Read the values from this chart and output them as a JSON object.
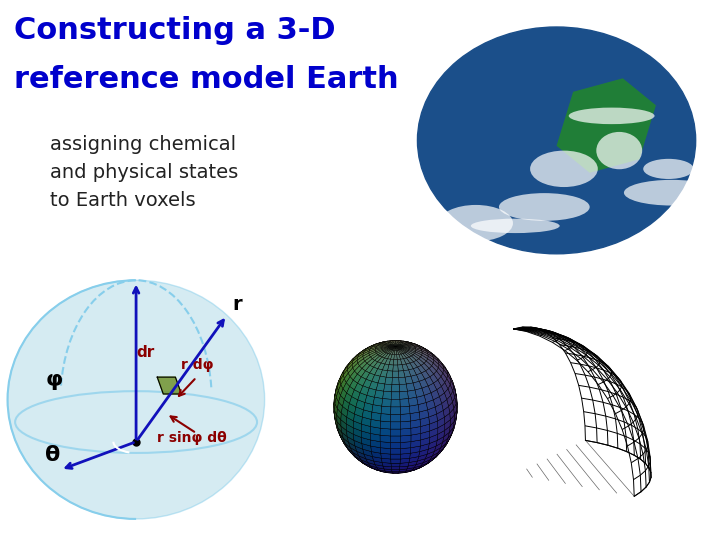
{
  "title_line1": "Constructing a 3-D",
  "title_line2": "reference model Earth",
  "subtitle": "assigning chemical\nand physical states\nto Earth voxels",
  "title_color": "#0000CC",
  "subtitle_color": "#222222",
  "bg_color": "#FFFFFF",
  "title_fontsize": 22,
  "subtitle_fontsize": 14
}
